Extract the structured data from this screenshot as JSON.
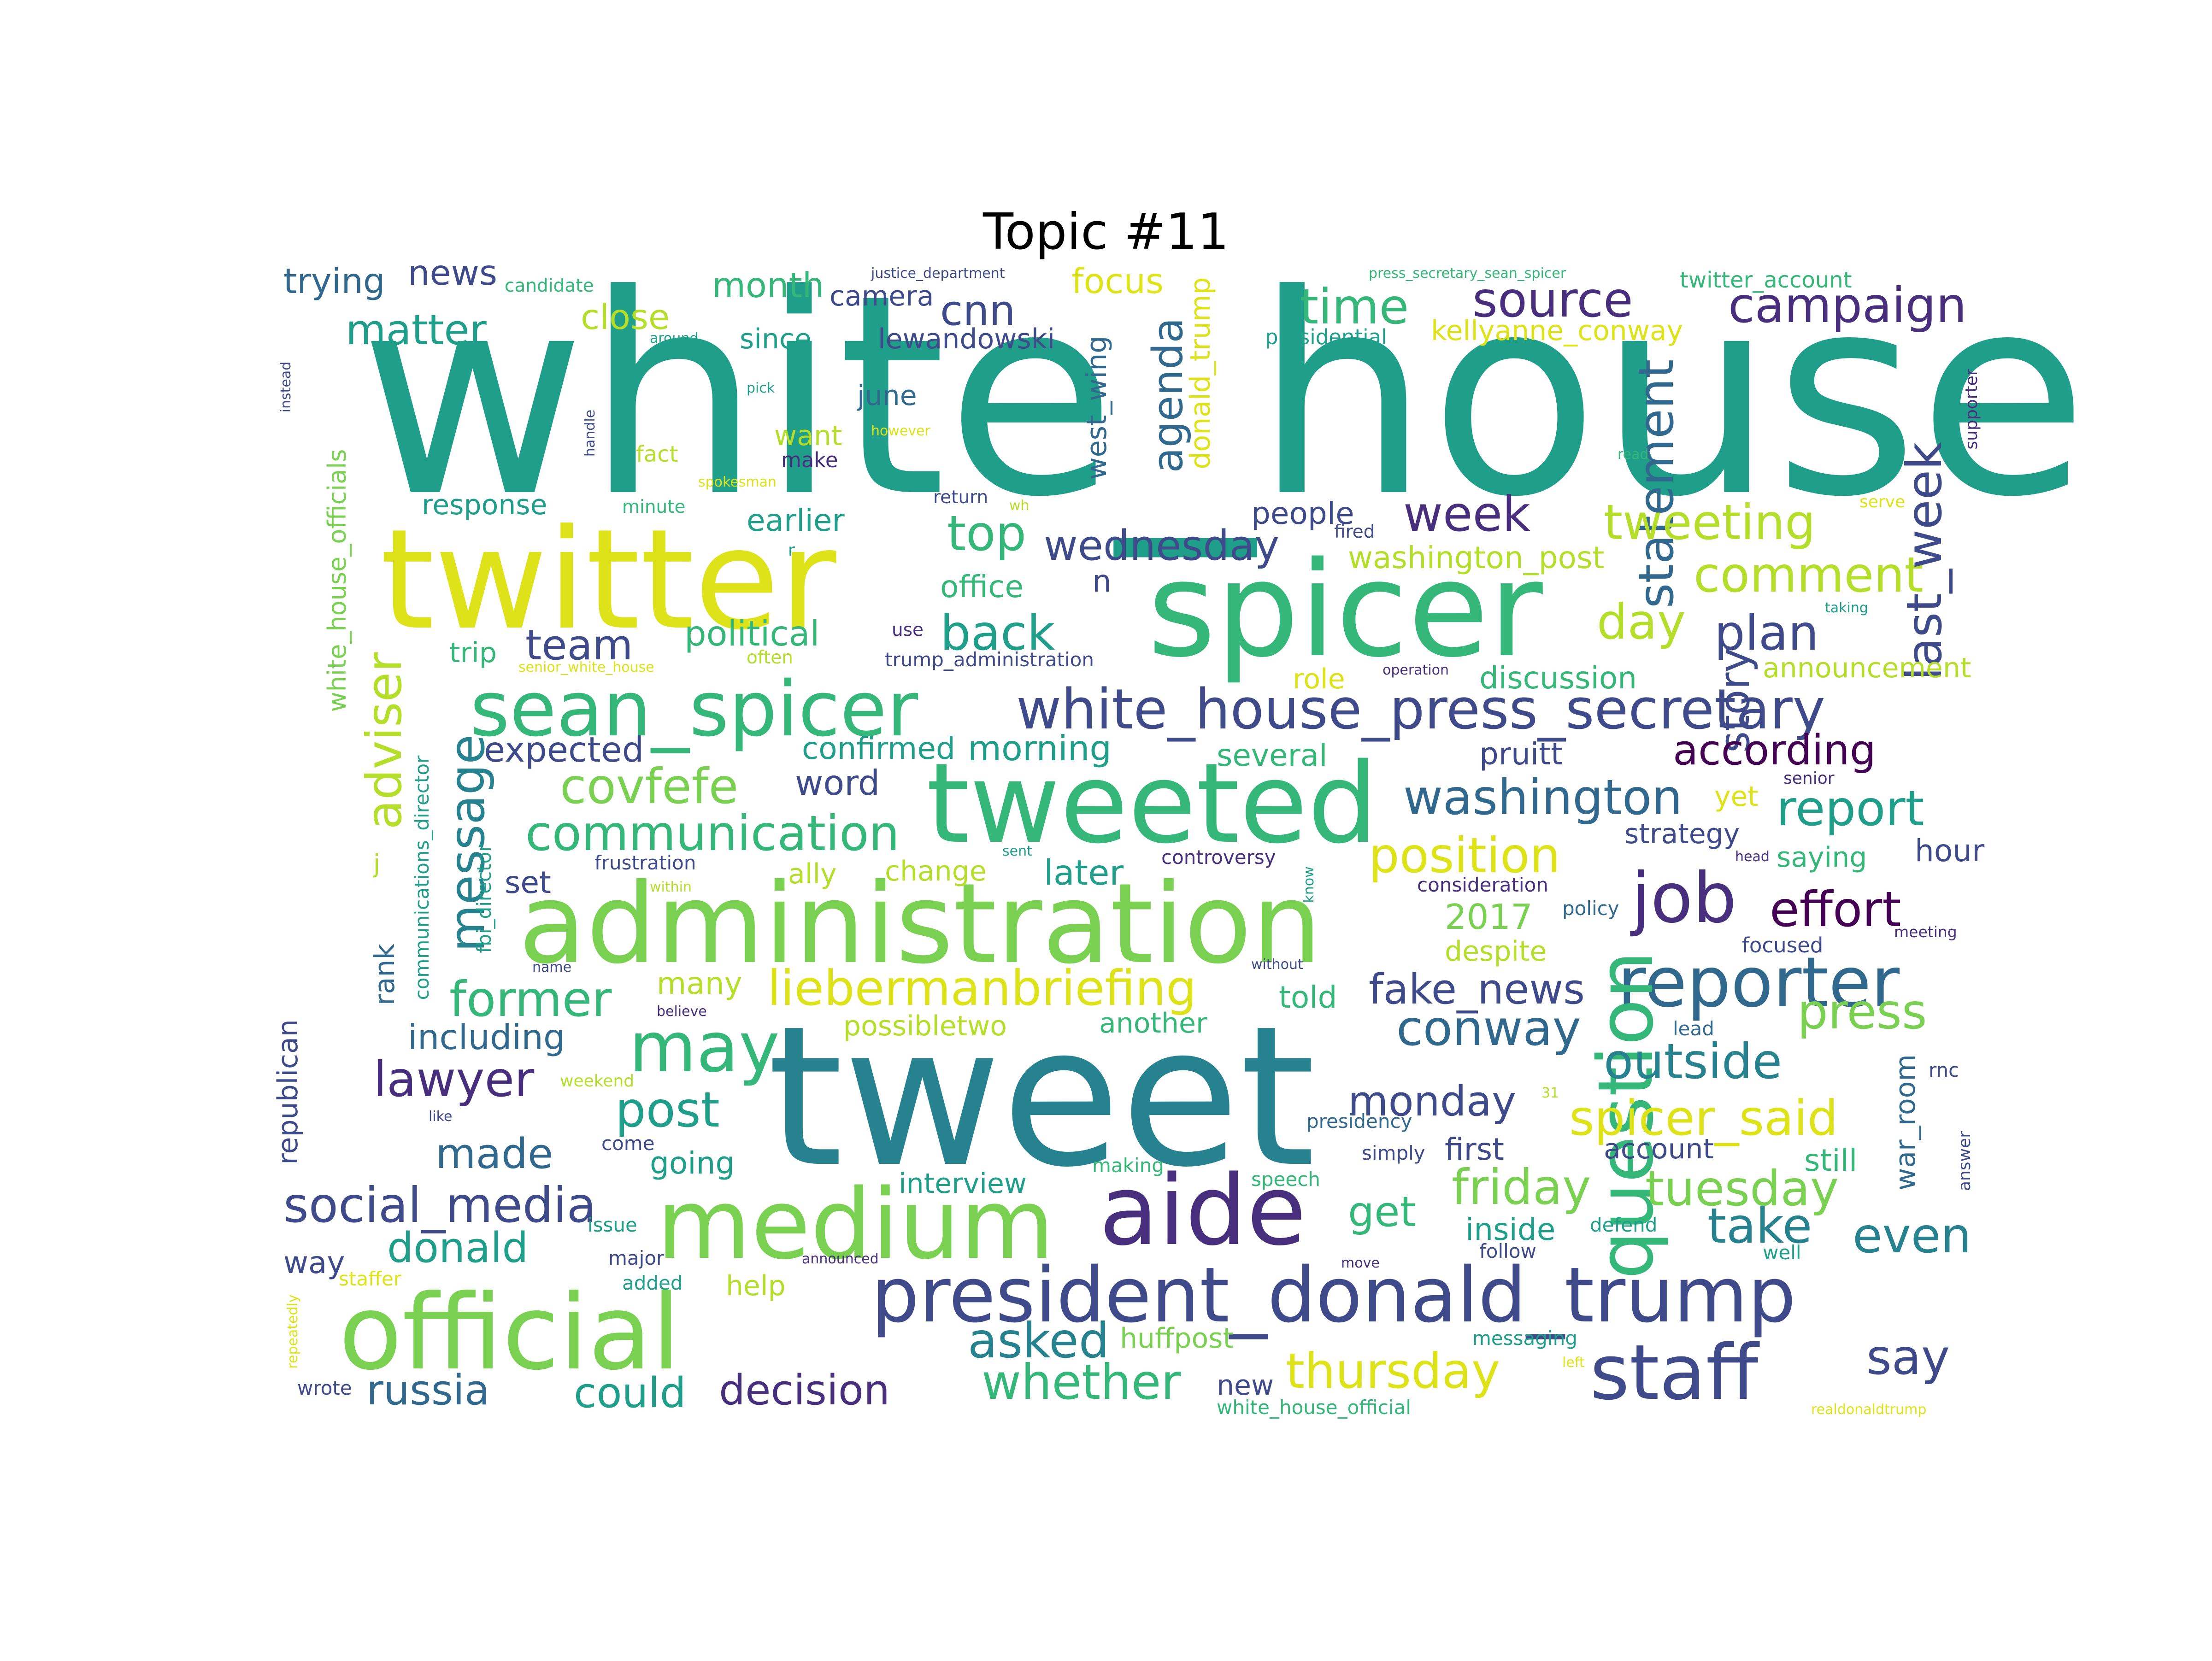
{
  "title": "Topic #11",
  "palette": {
    "yellow": "#dde318",
    "yellowgreen": "#b5de2b",
    "lightgreen": "#7ad151",
    "green": "#35b779",
    "teal": "#1f9e89",
    "tealblue": "#26828e",
    "blue": "#31688e",
    "slate": "#3e4a89",
    "indigo": "#472f7d",
    "purple": "#440154"
  },
  "words": [
    {
      "text": "white_house",
      "color": "teal"
    },
    {
      "text": "twitter",
      "color": "yellow"
    },
    {
      "text": "spicer",
      "color": "green"
    },
    {
      "text": "tweet",
      "color": "tealblue"
    },
    {
      "text": "administration",
      "color": "lightgreen"
    },
    {
      "text": "tweeted",
      "color": "green"
    },
    {
      "text": "medium",
      "color": "lightgreen"
    },
    {
      "text": "official",
      "color": "lightgreen"
    },
    {
      "text": "aide",
      "color": "indigo"
    },
    {
      "text": "president_donald_trump",
      "color": "slate"
    },
    {
      "text": "sean_spicer",
      "color": "green"
    },
    {
      "text": "white_house_press_secretary",
      "color": "slate"
    },
    {
      "text": "reporter",
      "color": "blue"
    },
    {
      "text": "staff",
      "color": "slate"
    },
    {
      "text": "question",
      "color": "green"
    },
    {
      "text": "job",
      "color": "indigo"
    },
    {
      "text": "may",
      "color": "green"
    },
    {
      "text": "communication",
      "color": "green"
    },
    {
      "text": "covfefe",
      "color": "lightgreen"
    },
    {
      "text": "liebermanbriefing",
      "color": "yellow"
    },
    {
      "text": "conway",
      "color": "blue"
    },
    {
      "text": "washington",
      "color": "blue"
    },
    {
      "text": "position",
      "color": "yellow"
    },
    {
      "text": "source",
      "color": "indigo"
    },
    {
      "text": "campaign",
      "color": "indigo"
    },
    {
      "text": "time",
      "color": "green"
    },
    {
      "text": "matter",
      "color": "teal"
    },
    {
      "text": "statement",
      "color": "blue"
    },
    {
      "text": "story",
      "color": "slate"
    },
    {
      "text": "week",
      "color": "indigo"
    },
    {
      "text": "tweeting",
      "color": "yellowgreen"
    },
    {
      "text": "comment",
      "color": "yellowgreen"
    },
    {
      "text": "wednesday",
      "color": "slate"
    },
    {
      "text": "last_week",
      "color": "slate"
    },
    {
      "text": "agenda",
      "color": "blue"
    },
    {
      "text": "plan",
      "color": "slate"
    },
    {
      "text": "day",
      "color": "yellowgreen"
    },
    {
      "text": "top",
      "color": "green"
    },
    {
      "text": "back",
      "color": "teal"
    },
    {
      "text": "team",
      "color": "slate"
    },
    {
      "text": "according",
      "color": "purple"
    },
    {
      "text": "message",
      "color": "tealblue"
    },
    {
      "text": "adviser",
      "color": "yellowgreen"
    },
    {
      "text": "effort",
      "color": "purple"
    },
    {
      "text": "report",
      "color": "teal"
    },
    {
      "text": "press",
      "color": "lightgreen"
    },
    {
      "text": "outside",
      "color": "tealblue"
    },
    {
      "text": "spicer_said",
      "color": "yellow"
    },
    {
      "text": "friday",
      "color": "lightgreen"
    },
    {
      "text": "tuesday",
      "color": "lightgreen"
    },
    {
      "text": "thursday",
      "color": "yellow"
    },
    {
      "text": "whether",
      "color": "green"
    },
    {
      "text": "asked",
      "color": "tealblue"
    },
    {
      "text": "say",
      "color": "slate"
    },
    {
      "text": "even",
      "color": "tealblue"
    },
    {
      "text": "take",
      "color": "tealblue"
    },
    {
      "text": "monday",
      "color": "slate"
    },
    {
      "text": "fake_news",
      "color": "slate"
    },
    {
      "text": "lawyer",
      "color": "indigo"
    },
    {
      "text": "former",
      "color": "green"
    },
    {
      "text": "post",
      "color": "teal"
    },
    {
      "text": "made",
      "color": "blue"
    },
    {
      "text": "social_media",
      "color": "slate"
    },
    {
      "text": "donald",
      "color": "teal"
    },
    {
      "text": "russia",
      "color": "blue"
    },
    {
      "text": "could",
      "color": "teal"
    },
    {
      "text": "decision",
      "color": "indigo"
    },
    {
      "text": "get",
      "color": "green"
    },
    {
      "text": "cnn",
      "color": "slate"
    },
    {
      "text": "news",
      "color": "slate"
    },
    {
      "text": "trying",
      "color": "blue"
    },
    {
      "text": "close",
      "color": "yellowgreen"
    },
    {
      "text": "month",
      "color": "green"
    },
    {
      "text": "since",
      "color": "teal"
    },
    {
      "text": "lewandowski",
      "color": "slate"
    },
    {
      "text": "camera",
      "color": "slate"
    },
    {
      "text": "focus",
      "color": "yellow"
    },
    {
      "text": "west_wing",
      "color": "blue"
    },
    {
      "text": "donald_trump",
      "color": "yellow"
    },
    {
      "text": "kellyanne_conway",
      "color": "yellow"
    },
    {
      "text": "twitter_account",
      "color": "green"
    },
    {
      "text": "presidential",
      "color": "teal"
    },
    {
      "text": "june",
      "color": "blue"
    },
    {
      "text": "want",
      "color": "yellowgreen"
    },
    {
      "text": "fact",
      "color": "yellowgreen"
    },
    {
      "text": "make",
      "color": "indigo"
    },
    {
      "text": "response",
      "color": "teal"
    },
    {
      "text": "earlier",
      "color": "teal"
    },
    {
      "text": "office",
      "color": "green"
    },
    {
      "text": "people",
      "color": "slate"
    },
    {
      "text": "washington_post",
      "color": "yellowgreen"
    },
    {
      "text": "political",
      "color": "green"
    },
    {
      "text": "trip",
      "color": "green"
    },
    {
      "text": "role",
      "color": "yellow"
    },
    {
      "text": "discussion",
      "color": "green"
    },
    {
      "text": "announcement",
      "color": "yellowgreen"
    },
    {
      "text": "expected",
      "color": "slate"
    },
    {
      "text": "confirmed",
      "color": "teal"
    },
    {
      "text": "morning",
      "color": "teal"
    },
    {
      "text": "several",
      "color": "green"
    },
    {
      "text": "pruitt",
      "color": "slate"
    },
    {
      "text": "word",
      "color": "slate"
    },
    {
      "text": "strategy",
      "color": "slate"
    },
    {
      "text": "yet",
      "color": "yellow"
    },
    {
      "text": "saying",
      "color": "green"
    },
    {
      "text": "hour",
      "color": "slate"
    },
    {
      "text": "ally",
      "color": "yellowgreen"
    },
    {
      "text": "change",
      "color": "yellowgreen"
    },
    {
      "text": "later",
      "color": "teal"
    },
    {
      "text": "set",
      "color": "slate"
    },
    {
      "text": "2017",
      "color": "lightgreen"
    },
    {
      "text": "despite",
      "color": "yellowgreen"
    },
    {
      "text": "focused",
      "color": "slate"
    },
    {
      "text": "many",
      "color": "yellowgreen"
    },
    {
      "text": "told",
      "color": "green"
    },
    {
      "text": "possibletwo",
      "color": "yellowgreen"
    },
    {
      "text": "another",
      "color": "green"
    },
    {
      "text": "including",
      "color": "blue"
    },
    {
      "text": "going",
      "color": "teal"
    },
    {
      "text": "first",
      "color": "slate"
    },
    {
      "text": "account",
      "color": "slate"
    },
    {
      "text": "still",
      "color": "green"
    },
    {
      "text": "interview",
      "color": "teal"
    },
    {
      "text": "inside",
      "color": "teal"
    },
    {
      "text": "way",
      "color": "slate"
    },
    {
      "text": "help",
      "color": "yellowgreen"
    },
    {
      "text": "huffpost",
      "color": "lightgreen"
    },
    {
      "text": "new",
      "color": "slate"
    },
    {
      "text": "war_room",
      "color": "blue"
    },
    {
      "text": "republican",
      "color": "slate"
    },
    {
      "text": "rank",
      "color": "blue"
    },
    {
      "text": "communications_director",
      "color": "teal"
    },
    {
      "text": "fbi_director",
      "color": "teal"
    },
    {
      "text": "white_house_officials",
      "color": "lightgreen"
    },
    {
      "text": "frustration",
      "color": "slate"
    },
    {
      "text": "controversy",
      "color": "indigo"
    },
    {
      "text": "consideration",
      "color": "indigo"
    },
    {
      "text": "policy",
      "color": "blue"
    },
    {
      "text": "presidency",
      "color": "blue"
    },
    {
      "text": "simply",
      "color": "slate"
    },
    {
      "text": "speech",
      "color": "green"
    },
    {
      "text": "making",
      "color": "green"
    },
    {
      "text": "defend",
      "color": "teal"
    },
    {
      "text": "follow",
      "color": "slate"
    },
    {
      "text": "well",
      "color": "teal"
    },
    {
      "text": "messaging",
      "color": "teal"
    },
    {
      "text": "white_house_official",
      "color": "green"
    },
    {
      "text": "issue",
      "color": "teal"
    },
    {
      "text": "major",
      "color": "slate"
    },
    {
      "text": "added",
      "color": "teal"
    },
    {
      "text": "staffer",
      "color": "yellow"
    },
    {
      "text": "wrote",
      "color": "slate"
    },
    {
      "text": "candidate",
      "color": "green"
    },
    {
      "text": "around",
      "color": "teal"
    },
    {
      "text": "pick",
      "color": "teal"
    },
    {
      "text": "however",
      "color": "yellow"
    },
    {
      "text": "minute",
      "color": "green"
    },
    {
      "text": "spokesman",
      "color": "yellow"
    },
    {
      "text": "return",
      "color": "slate"
    },
    {
      "text": "wh",
      "color": "yellowgreen"
    },
    {
      "text": "fired",
      "color": "slate"
    },
    {
      "text": "serve",
      "color": "yellow"
    },
    {
      "text": "taking",
      "color": "teal"
    },
    {
      "text": "read",
      "color": "green"
    },
    {
      "text": "supporter",
      "color": "indigo"
    },
    {
      "text": "instead",
      "color": "slate"
    },
    {
      "text": "handle",
      "color": "slate"
    },
    {
      "text": "justice_department",
      "color": "slate"
    },
    {
      "text": "press_secretary_sean_spicer",
      "color": "green"
    },
    {
      "text": "use",
      "color": "indigo"
    },
    {
      "text": "often",
      "color": "yellowgreen"
    },
    {
      "text": "trump_administration",
      "color": "slate"
    },
    {
      "text": "senior_white_house",
      "color": "yellow"
    },
    {
      "text": "operation",
      "color": "indigo"
    },
    {
      "text": "senior",
      "color": "indigo"
    },
    {
      "text": "sent",
      "color": "teal"
    },
    {
      "text": "head",
      "color": "indigo"
    },
    {
      "text": "know",
      "color": "teal"
    },
    {
      "text": "within",
      "color": "yellowgreen"
    },
    {
      "text": "meeting",
      "color": "indigo"
    },
    {
      "text": "lead",
      "color": "blue"
    },
    {
      "text": "rnc",
      "color": "slate"
    },
    {
      "text": "answer",
      "color": "slate"
    },
    {
      "text": "name",
      "color": "slate"
    },
    {
      "text": "without",
      "color": "slate"
    },
    {
      "text": "believe",
      "color": "indigo"
    },
    {
      "text": "weekend",
      "color": "yellowgreen"
    },
    {
      "text": "like",
      "color": "slate"
    },
    {
      "text": "come",
      "color": "slate"
    },
    {
      "text": "31",
      "color": "yellowgreen"
    },
    {
      "text": "announced",
      "color": "indigo"
    },
    {
      "text": "move",
      "color": "indigo"
    },
    {
      "text": "left",
      "color": "yellow"
    },
    {
      "text": "realdonaldtrump",
      "color": "yellow"
    },
    {
      "text": "repeatedly",
      "color": "yellow"
    },
    {
      "text": "j",
      "color": "yellowgreen"
    },
    {
      "text": "n",
      "color": "slate"
    },
    {
      "text": "r",
      "color": "teal"
    }
  ]
}
